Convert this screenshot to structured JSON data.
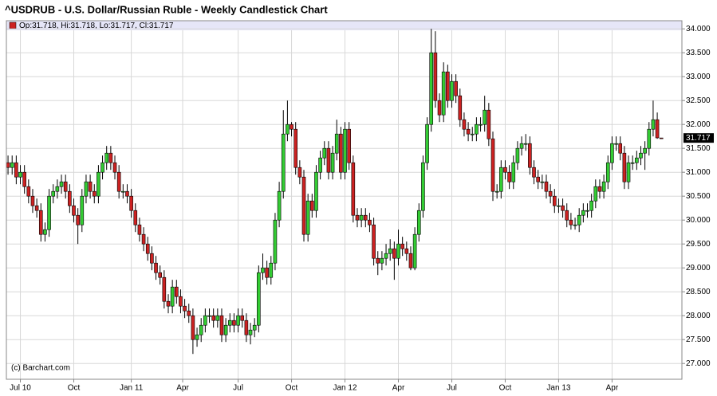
{
  "chart_data": {
    "type": "candlestick",
    "title": "^USDRUB - U.S. Dollar/Russian Ruble - Weekly Candlestick Chart",
    "legend_text": "Op:31.718, Hi:31.718, Lo:31.717, Cl:31.717",
    "footer": "(c) Barchart.com",
    "last_price_label": "31.717",
    "up_color": "#33cc33",
    "down_color": "#cc2222",
    "grid": true,
    "xlim": [
      -0.4,
      164
    ],
    "xticks": [
      {
        "value": 3,
        "label": "Jul 10"
      },
      {
        "value": 16,
        "label": "Oct"
      },
      {
        "value": 30,
        "label": "Jan 11"
      },
      {
        "value": 42.5,
        "label": "Apr"
      },
      {
        "value": 56,
        "label": "Jul"
      },
      {
        "value": 69,
        "label": "Oct"
      },
      {
        "value": 82,
        "label": "Jan 12"
      },
      {
        "value": 95,
        "label": "Apr"
      },
      {
        "value": 108,
        "label": "Jul"
      },
      {
        "value": 121,
        "label": "Oct"
      },
      {
        "value": 134,
        "label": "Jan 13"
      },
      {
        "value": 147,
        "label": "Apr"
      }
    ],
    "ylim": [
      26.67,
      34.17
    ],
    "yticks": [
      {
        "value": 27,
        "label": "27.000"
      },
      {
        "value": 27.5,
        "label": "27.500"
      },
      {
        "value": 28,
        "label": "28.000"
      },
      {
        "value": 28.5,
        "label": "28.500"
      },
      {
        "value": 29,
        "label": "29.000"
      },
      {
        "value": 29.5,
        "label": "29.500"
      },
      {
        "value": 30,
        "label": "30.000"
      },
      {
        "value": 30.5,
        "label": "30.500"
      },
      {
        "value": 31,
        "label": "31.000"
      },
      {
        "value": 31.5,
        "label": "31.500"
      },
      {
        "value": 32,
        "label": "32.000"
      },
      {
        "value": 32.5,
        "label": "32.500"
      },
      {
        "value": 33,
        "label": "33.000"
      },
      {
        "value": 33.5,
        "label": "33.500"
      },
      {
        "value": 34,
        "label": "34.000"
      }
    ],
    "open": [
      31.2,
      31.1,
      31.2,
      30.9,
      31.0,
      30.7,
      30.5,
      30.3,
      30.2,
      29.7,
      29.8,
      30.5,
      30.6,
      30.7,
      30.8,
      30.6,
      30.3,
      30.1,
      29.9,
      30.5,
      30.8,
      30.6,
      30.5,
      31.0,
      31.2,
      31.4,
      31.2,
      31.0,
      30.6,
      30.6,
      30.5,
      30.2,
      29.9,
      29.7,
      29.5,
      29.3,
      29.1,
      28.9,
      28.8,
      28.3,
      28.2,
      28.6,
      28.4,
      28.2,
      28.1,
      28.0,
      27.5,
      27.6,
      27.8,
      28.0,
      28.0,
      27.9,
      28.0,
      27.6,
      27.8,
      27.9,
      27.8,
      28.0,
      27.9,
      27.6,
      27.7,
      27.8,
      28.9,
      29.0,
      28.8,
      29.1,
      30.0,
      30.6,
      31.8,
      32.0,
      31.9,
      31.1,
      30.9,
      29.7,
      30.4,
      30.2,
      31.0,
      31.3,
      31.5,
      31.0,
      31.4,
      31.8,
      31.0,
      31.9,
      31.2,
      30.1,
      30.0,
      30.1,
      30.0,
      29.9,
      29.2,
      29.1,
      29.2,
      29.3,
      29.4,
      29.2,
      29.5,
      29.4,
      29.3,
      29.0,
      29.7,
      30.2,
      31.2,
      32.0,
      33.5,
      32.5,
      32.2,
      33.1,
      32.5,
      32.9,
      32.6,
      32.1,
      31.9,
      31.8,
      31.8,
      32.0,
      32.0,
      32.3,
      31.7,
      30.6,
      30.6,
      31.1,
      31.0,
      30.8,
      31.2,
      31.5,
      31.6,
      31.6,
      31.1,
      30.9,
      30.8,
      30.8,
      30.6,
      30.5,
      30.3,
      30.3,
      30.2,
      30.0,
      29.9,
      29.9,
      30.1,
      30.2,
      30.2,
      30.4,
      30.7,
      30.6,
      30.8,
      31.2,
      31.6,
      31.6,
      31.4,
      30.8,
      31.2,
      31.2,
      31.3,
      31.4,
      31.5,
      31.9,
      32.1,
      31.718
    ],
    "high": [
      31.35,
      31.35,
      31.35,
      31.15,
      31.15,
      30.85,
      30.65,
      30.45,
      30.35,
      29.95,
      30.65,
      30.75,
      30.85,
      30.95,
      30.95,
      30.75,
      30.45,
      30.25,
      30.65,
      30.95,
      30.95,
      30.75,
      31.15,
      31.35,
      31.55,
      31.55,
      31.35,
      31.15,
      30.75,
      30.75,
      30.65,
      30.35,
      30.05,
      29.85,
      29.65,
      29.45,
      29.25,
      29.05,
      28.95,
      28.45,
      28.75,
      28.75,
      28.55,
      28.35,
      28.25,
      28.15,
      27.75,
      27.95,
      28.15,
      28.15,
      28.15,
      28.15,
      28.15,
      27.95,
      28.05,
      28.05,
      28.15,
      28.15,
      28.05,
      27.85,
      27.95,
      29.05,
      29.3,
      29.15,
      29.25,
      30.15,
      30.8,
      32.3,
      32.5,
      32.05,
      32.05,
      31.25,
      31.05,
      30.55,
      30.55,
      31.15,
      31.45,
      31.65,
      31.65,
      31.55,
      32.1,
      31.95,
      32.05,
      32.05,
      31.35,
      30.25,
      30.25,
      30.25,
      30.15,
      30.05,
      29.35,
      29.35,
      29.5,
      29.6,
      29.55,
      29.8,
      29.65,
      29.55,
      29.45,
      29.85,
      30.35,
      31.35,
      32.15,
      34.0,
      33.95,
      32.65,
      33.3,
      33.25,
      33.05,
      33.05,
      32.75,
      32.25,
      32.05,
      31.95,
      32.15,
      32.15,
      32.6,
      32.45,
      31.85,
      30.75,
      31.25,
      31.25,
      31.15,
      31.35,
      31.65,
      31.75,
      31.8,
      31.75,
      31.25,
      31.05,
      30.95,
      30.95,
      30.75,
      30.65,
      30.45,
      30.45,
      30.35,
      30.15,
      30.05,
      30.25,
      30.35,
      30.35,
      30.55,
      30.85,
      30.85,
      30.95,
      31.35,
      31.75,
      31.75,
      31.75,
      31.55,
      31.35,
      31.35,
      31.45,
      31.55,
      31.65,
      32.05,
      32.5,
      32.25,
      31.718
    ],
    "low": [
      30.95,
      30.95,
      30.75,
      30.75,
      30.55,
      30.35,
      30.15,
      30.05,
      29.55,
      29.55,
      29.65,
      30.35,
      30.45,
      30.55,
      30.45,
      30.15,
      29.95,
      29.5,
      29.75,
      30.35,
      30.45,
      30.35,
      30.35,
      30.85,
      31.05,
      31.05,
      30.85,
      30.45,
      30.45,
      30.35,
      30.05,
      29.75,
      29.55,
      29.35,
      29.15,
      28.95,
      28.75,
      28.65,
      28.15,
      28.05,
      28.05,
      28.25,
      28.05,
      27.95,
      27.85,
      27.2,
      27.35,
      27.45,
      27.65,
      27.85,
      27.75,
      27.75,
      27.45,
      27.45,
      27.65,
      27.65,
      27.65,
      27.75,
      27.45,
      27.4,
      27.55,
      27.65,
      28.75,
      28.65,
      28.65,
      28.95,
      29.85,
      30.45,
      31.65,
      31.75,
      30.95,
      30.75,
      29.55,
      29.55,
      30.05,
      30.05,
      30.85,
      31.15,
      30.85,
      30.85,
      31.25,
      30.85,
      30.85,
      31.05,
      29.95,
      29.85,
      29.85,
      29.85,
      29.75,
      29.05,
      28.85,
      28.95,
      29.05,
      29.15,
      28.75,
      29.05,
      29.25,
      29.15,
      28.95,
      28.95,
      29.55,
      30.05,
      31.05,
      31.85,
      32.35,
      32.05,
      32.05,
      32.35,
      32.35,
      32.45,
      31.95,
      31.75,
      31.65,
      31.65,
      31.65,
      31.85,
      31.85,
      31.55,
      30.4,
      30.45,
      30.45,
      30.85,
      30.65,
      30.65,
      31.05,
      31.35,
      31.45,
      30.95,
      30.75,
      30.65,
      30.65,
      30.45,
      30.35,
      30.15,
      30.15,
      30.05,
      29.85,
      29.8,
      29.8,
      29.75,
      29.95,
      30.05,
      30.05,
      30.25,
      30.45,
      30.45,
      30.65,
      31.05,
      31.45,
      31.25,
      30.65,
      30.65,
      31.05,
      31.05,
      31.15,
      31.05,
      31.35,
      31.75,
      31.7,
      31.717
    ],
    "close": [
      31.1,
      31.2,
      30.9,
      31.0,
      30.7,
      30.5,
      30.3,
      30.2,
      29.7,
      29.8,
      30.5,
      30.6,
      30.7,
      30.8,
      30.6,
      30.3,
      30.1,
      29.9,
      30.5,
      30.8,
      30.6,
      30.5,
      31.0,
      31.2,
      31.4,
      31.2,
      31.0,
      30.6,
      30.6,
      30.5,
      30.2,
      29.9,
      29.7,
      29.5,
      29.3,
      29.1,
      28.9,
      28.8,
      28.3,
      28.2,
      28.6,
      28.4,
      28.2,
      28.1,
      28.0,
      27.5,
      27.6,
      27.8,
      28.0,
      28.0,
      27.9,
      28.0,
      27.6,
      27.8,
      27.9,
      27.8,
      28.0,
      27.9,
      27.6,
      27.7,
      27.8,
      28.9,
      29.0,
      28.8,
      29.1,
      30.0,
      30.6,
      31.8,
      32.0,
      31.9,
      31.1,
      30.9,
      29.7,
      30.4,
      30.2,
      31.0,
      31.3,
      31.5,
      31.0,
      31.4,
      31.8,
      31.0,
      31.9,
      31.2,
      30.1,
      30.0,
      30.1,
      30.0,
      29.9,
      29.2,
      29.1,
      29.2,
      29.3,
      29.4,
      29.2,
      29.5,
      29.4,
      29.3,
      29.0,
      29.7,
      30.2,
      31.2,
      32.0,
      33.5,
      32.5,
      32.2,
      33.1,
      32.5,
      32.9,
      32.6,
      32.1,
      31.9,
      31.8,
      31.8,
      32.0,
      32.0,
      32.3,
      31.7,
      30.6,
      30.6,
      31.1,
      31.0,
      30.8,
      31.2,
      31.5,
      31.6,
      31.6,
      31.1,
      30.9,
      30.8,
      30.8,
      30.6,
      30.5,
      30.3,
      30.3,
      30.2,
      30.0,
      29.9,
      29.9,
      30.1,
      30.2,
      30.2,
      30.4,
      30.7,
      30.6,
      30.8,
      31.2,
      31.6,
      31.6,
      31.4,
      30.8,
      31.2,
      31.2,
      31.3,
      31.4,
      31.5,
      31.9,
      32.1,
      31.72,
      31.717
    ]
  }
}
